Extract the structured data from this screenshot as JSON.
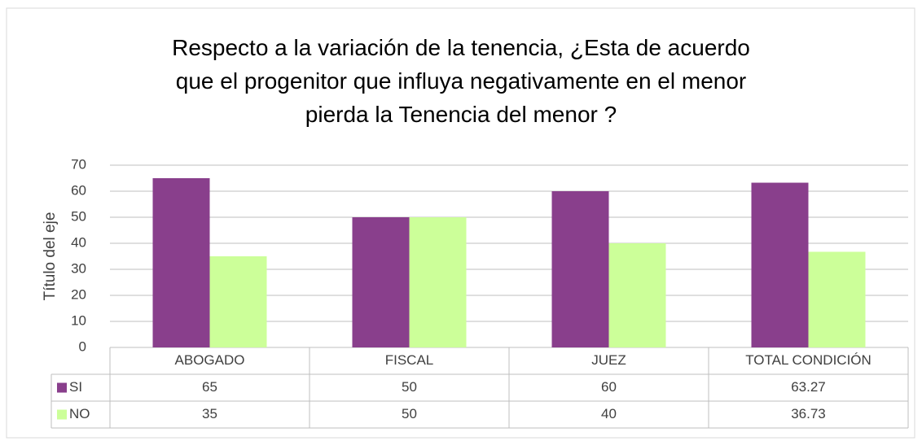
{
  "chart_data": {
    "type": "bar",
    "title": "Respecto a la variación de la tenencia, ¿Esta de acuerdo que el progenitor que influya negativamente en el menor pierda la Tenencia del menor ?",
    "y_axis_label": "Título del eje",
    "categories": [
      "ABOGADO",
      "FISCAL",
      "JUEZ",
      "TOTAL CONDICIÓN"
    ],
    "series": [
      {
        "name": "SI",
        "color": "#893f8c",
        "values": [
          65,
          50,
          60,
          63.27
        ]
      },
      {
        "name": "NO",
        "color": "#ccff99",
        "values": [
          35,
          50,
          40,
          36.73
        ]
      }
    ],
    "ylim": [
      0,
      70
    ],
    "yticks": [
      0,
      10,
      20,
      30,
      40,
      50,
      60,
      70
    ],
    "grid": true
  }
}
